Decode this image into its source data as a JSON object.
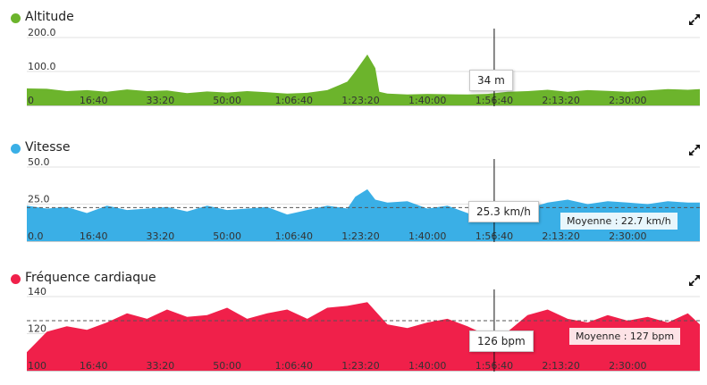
{
  "panels": [
    {
      "title": "Altitude",
      "color": "#6cb42c",
      "expand_icon": "expand-icon",
      "tooltip": "34 m",
      "average_label": "",
      "chart_data": {
        "type": "area",
        "title": "Altitude",
        "x_ticks": [
          "16:40",
          "33:20",
          "50:00",
          "1:06:40",
          "1:23:20",
          "1:40:00",
          "1:56:40",
          "2:13:20",
          "2:30:00"
        ],
        "y_ticks": [
          "200.0",
          "100.0",
          "0"
        ],
        "ylim": [
          0,
          200
        ],
        "cursor_x": "1:56:40",
        "cursor_value": 34,
        "x": [
          "0:00",
          "5:00",
          "10:00",
          "15:00",
          "20:00",
          "25:00",
          "30:00",
          "35:00",
          "40:00",
          "45:00",
          "50:00",
          "55:00",
          "1:00:00",
          "1:05:00",
          "1:10:00",
          "1:15:00",
          "1:20:00",
          "1:22:00",
          "1:25:00",
          "1:27:00",
          "1:28:00",
          "1:30:00",
          "1:35:00",
          "1:40:00",
          "1:45:00",
          "1:50:00",
          "1:55:00",
          "2:00:00",
          "2:05:00",
          "2:10:00",
          "2:15:00",
          "2:20:00",
          "2:25:00",
          "2:30:00",
          "2:35:00",
          "2:40:00",
          "2:45:00",
          "2:48:00"
        ],
        "values": [
          50,
          49,
          42,
          45,
          40,
          47,
          42,
          44,
          36,
          41,
          38,
          42,
          39,
          35,
          37,
          45,
          70,
          100,
          150,
          110,
          40,
          35,
          32,
          34,
          33,
          32,
          34,
          40,
          42,
          46,
          40,
          45,
          43,
          40,
          44,
          48,
          46,
          48
        ]
      }
    },
    {
      "title": "Vitesse",
      "color": "#3aafe6",
      "expand_icon": "expand-icon",
      "tooltip": "25.3 km/h",
      "average_label": "Moyenne : 22.7 km/h",
      "chart_data": {
        "type": "area",
        "title": "Vitesse",
        "x_ticks": [
          "16:40",
          "33:20",
          "50:00",
          "1:06:40",
          "1:23:20",
          "1:40:00",
          "1:56:40",
          "2:13:20",
          "2:30:00"
        ],
        "y_ticks": [
          "50.0",
          "25.0",
          "0.0"
        ],
        "ylim": [
          0,
          50
        ],
        "average": 22.7,
        "cursor_x": "1:56:40",
        "cursor_value": 25.3,
        "x": [
          "0:00",
          "5:00",
          "10:00",
          "15:00",
          "20:00",
          "25:00",
          "30:00",
          "35:00",
          "40:00",
          "45:00",
          "50:00",
          "55:00",
          "1:00:00",
          "1:05:00",
          "1:10:00",
          "1:15:00",
          "1:20:00",
          "1:22:00",
          "1:25:00",
          "1:27:00",
          "1:30:00",
          "1:35:00",
          "1:40:00",
          "1:45:00",
          "1:50:00",
          "1:55:00",
          "2:00:00",
          "2:05:00",
          "2:10:00",
          "2:15:00",
          "2:20:00",
          "2:25:00",
          "2:30:00",
          "2:35:00",
          "2:40:00",
          "2:45:00",
          "2:48:00"
        ],
        "values": [
          24,
          22,
          23,
          19,
          24,
          21,
          22,
          23,
          20,
          24,
          21,
          22,
          23,
          18,
          21,
          24,
          22,
          30,
          35,
          28,
          26,
          27,
          22,
          24,
          19,
          14,
          20,
          22,
          26,
          28,
          25,
          27,
          26,
          25,
          27,
          26,
          26
        ]
      }
    },
    {
      "title": "Fréquence cardiaque",
      "color": "#f0204a",
      "expand_icon": "expand-icon",
      "tooltip": "126 bpm",
      "average_label": "Moyenne : 127 bpm",
      "chart_data": {
        "type": "area",
        "title": "Fréquence cardiaque",
        "x_ticks": [
          "16:40",
          "33:20",
          "50:00",
          "1:06:40",
          "1:23:20",
          "1:40:00",
          "1:56:40",
          "2:13:20",
          "2:30:00"
        ],
        "y_ticks": [
          "140",
          "120",
          "100"
        ],
        "ylim": [
          100,
          140
        ],
        "average": 127,
        "cursor_x": "1:56:40",
        "cursor_value": 126,
        "x": [
          "0:00",
          "5:00",
          "10:00",
          "15:00",
          "20:00",
          "25:00",
          "30:00",
          "35:00",
          "40:00",
          "45:00",
          "50:00",
          "55:00",
          "1:00:00",
          "1:05:00",
          "1:10:00",
          "1:15:00",
          "1:20:00",
          "1:25:00",
          "1:30:00",
          "1:35:00",
          "1:40:00",
          "1:45:00",
          "1:50:00",
          "1:55:00",
          "2:00:00",
          "2:05:00",
          "2:10:00",
          "2:15:00",
          "2:20:00",
          "2:25:00",
          "2:30:00",
          "2:35:00",
          "2:40:00",
          "2:45:00",
          "2:48:00"
        ],
        "values": [
          110,
          121,
          124,
          122,
          126,
          131,
          128,
          133,
          129,
          130,
          134,
          128,
          131,
          133,
          128,
          134,
          135,
          137,
          125,
          123,
          126,
          128,
          124,
          119,
          121,
          130,
          133,
          128,
          126,
          130,
          127,
          129,
          126,
          131,
          125
        ]
      }
    }
  ]
}
